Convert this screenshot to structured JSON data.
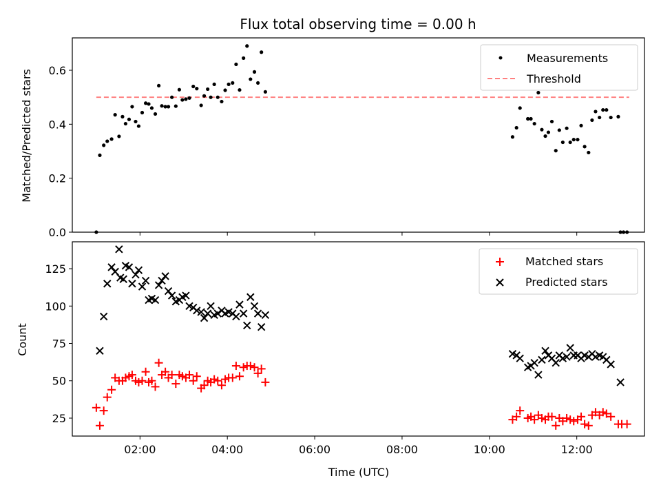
{
  "chart_data": [
    {
      "type": "scatter",
      "title": "Flux total observing time = 0.00 h",
      "xlabel": "",
      "ylabel": "Matched/Predicted stars",
      "xlim": [
        0.45,
        13.55
      ],
      "ylim": [
        0.0,
        0.72
      ],
      "yticks": [
        0.0,
        0.2,
        0.4,
        0.6
      ],
      "ytick_labels": [
        "0.0",
        "0.2",
        "0.4",
        "0.6"
      ],
      "xticks": [
        2,
        4,
        6,
        8,
        10,
        12
      ],
      "legend_position": "top-right",
      "threshold": {
        "name": "Threshold",
        "y": 0.5,
        "x": [
          1.0,
          13.2
        ],
        "color": "#ff8080",
        "style": "dashed"
      },
      "series": [
        {
          "name": "Measurements",
          "marker": "dot",
          "color": "#000000",
          "points": [
            [
              1.0,
              0.0
            ],
            [
              1.08,
              0.285
            ],
            [
              1.17,
              0.322
            ],
            [
              1.25,
              0.337
            ],
            [
              1.35,
              0.345
            ],
            [
              1.43,
              0.435
            ],
            [
              1.52,
              0.355
            ],
            [
              1.6,
              0.428
            ],
            [
              1.67,
              0.402
            ],
            [
              1.75,
              0.418
            ],
            [
              1.82,
              0.465
            ],
            [
              1.9,
              0.41
            ],
            [
              1.97,
              0.393
            ],
            [
              2.05,
              0.443
            ],
            [
              2.13,
              0.478
            ],
            [
              2.2,
              0.475
            ],
            [
              2.27,
              0.46
            ],
            [
              2.35,
              0.438
            ],
            [
              2.43,
              0.543
            ],
            [
              2.5,
              0.468
            ],
            [
              2.58,
              0.465
            ],
            [
              2.65,
              0.465
            ],
            [
              2.73,
              0.5
            ],
            [
              2.82,
              0.467
            ],
            [
              2.9,
              0.528
            ],
            [
              2.97,
              0.49
            ],
            [
              3.05,
              0.493
            ],
            [
              3.13,
              0.497
            ],
            [
              3.22,
              0.54
            ],
            [
              3.3,
              0.532
            ],
            [
              3.4,
              0.47
            ],
            [
              3.47,
              0.505
            ],
            [
              3.55,
              0.53
            ],
            [
              3.62,
              0.5
            ],
            [
              3.7,
              0.548
            ],
            [
              3.78,
              0.5
            ],
            [
              3.87,
              0.484
            ],
            [
              3.95,
              0.526
            ],
            [
              4.03,
              0.548
            ],
            [
              4.12,
              0.553
            ],
            [
              4.2,
              0.622
            ],
            [
              4.28,
              0.527
            ],
            [
              4.37,
              0.645
            ],
            [
              4.45,
              0.69
            ],
            [
              4.53,
              0.567
            ],
            [
              4.62,
              0.594
            ],
            [
              4.7,
              0.553
            ],
            [
              4.78,
              0.667
            ],
            [
              4.87,
              0.52
            ],
            [
              10.53,
              0.353
            ],
            [
              10.62,
              0.387
            ],
            [
              10.7,
              0.46
            ],
            [
              10.88,
              0.42
            ],
            [
              10.95,
              0.42
            ],
            [
              11.03,
              0.402
            ],
            [
              11.12,
              0.517
            ],
            [
              11.2,
              0.38
            ],
            [
              11.28,
              0.356
            ],
            [
              11.35,
              0.37
            ],
            [
              11.43,
              0.41
            ],
            [
              11.52,
              0.302
            ],
            [
              11.6,
              0.378
            ],
            [
              11.68,
              0.333
            ],
            [
              11.77,
              0.385
            ],
            [
              11.85,
              0.333
            ],
            [
              11.93,
              0.343
            ],
            [
              12.02,
              0.343
            ],
            [
              12.1,
              0.395
            ],
            [
              12.18,
              0.317
            ],
            [
              12.27,
              0.295
            ],
            [
              12.35,
              0.415
            ],
            [
              12.43,
              0.447
            ],
            [
              12.52,
              0.425
            ],
            [
              12.6,
              0.453
            ],
            [
              12.68,
              0.453
            ],
            [
              12.78,
              0.425
            ],
            [
              12.95,
              0.428
            ],
            [
              13.0,
              0.0
            ],
            [
              13.07,
              0.0
            ],
            [
              13.15,
              0.0
            ]
          ]
        }
      ]
    },
    {
      "type": "scatter",
      "title": "",
      "xlabel": "Time (UTC)",
      "ylabel": "Count",
      "xlim": [
        0.45,
        13.55
      ],
      "ylim": [
        13,
        143
      ],
      "yticks": [
        25,
        50,
        75,
        100,
        125
      ],
      "ytick_labels": [
        "25",
        "50",
        "75",
        "100",
        "125"
      ],
      "xticks": [
        2,
        4,
        6,
        8,
        10,
        12
      ],
      "xtick_labels": [
        "02:00",
        "04:00",
        "06:00",
        "08:00",
        "10:00",
        "12:00"
      ],
      "legend_position": "top-right",
      "series": [
        {
          "name": "Matched stars",
          "marker": "plus",
          "color": "#ff0000",
          "points": [
            [
              1.0,
              32
            ],
            [
              1.08,
              20
            ],
            [
              1.17,
              30
            ],
            [
              1.25,
              39
            ],
            [
              1.35,
              44
            ],
            [
              1.43,
              52
            ],
            [
              1.52,
              50
            ],
            [
              1.6,
              50
            ],
            [
              1.67,
              52
            ],
            [
              1.75,
              53
            ],
            [
              1.82,
              54
            ],
            [
              1.9,
              50
            ],
            [
              1.97,
              49
            ],
            [
              2.05,
              50
            ],
            [
              2.13,
              56
            ],
            [
              2.2,
              49
            ],
            [
              2.27,
              50
            ],
            [
              2.35,
              46
            ],
            [
              2.43,
              62
            ],
            [
              2.5,
              54
            ],
            [
              2.58,
              56
            ],
            [
              2.65,
              52
            ],
            [
              2.73,
              54
            ],
            [
              2.82,
              48
            ],
            [
              2.9,
              54
            ],
            [
              2.97,
              53
            ],
            [
              3.05,
              52
            ],
            [
              3.13,
              54
            ],
            [
              3.22,
              50
            ],
            [
              3.3,
              53
            ],
            [
              3.4,
              45
            ],
            [
              3.47,
              47
            ],
            [
              3.55,
              50
            ],
            [
              3.62,
              49
            ],
            [
              3.7,
              51
            ],
            [
              3.78,
              50
            ],
            [
              3.87,
              47
            ],
            [
              3.95,
              51
            ],
            [
              4.03,
              52
            ],
            [
              4.12,
              52
            ],
            [
              4.2,
              60
            ],
            [
              4.28,
              53
            ],
            [
              4.37,
              59
            ],
            [
              4.45,
              60
            ],
            [
              4.53,
              60
            ],
            [
              4.62,
              59
            ],
            [
              4.7,
              55
            ],
            [
              4.78,
              58
            ],
            [
              4.87,
              49
            ],
            [
              10.53,
              24
            ],
            [
              10.62,
              26
            ],
            [
              10.7,
              30
            ],
            [
              10.88,
              25
            ],
            [
              10.95,
              26
            ],
            [
              11.03,
              24
            ],
            [
              11.12,
              27
            ],
            [
              11.2,
              25
            ],
            [
              11.28,
              24
            ],
            [
              11.35,
              26
            ],
            [
              11.43,
              26
            ],
            [
              11.52,
              20
            ],
            [
              11.6,
              25
            ],
            [
              11.68,
              23
            ],
            [
              11.77,
              25
            ],
            [
              11.85,
              24
            ],
            [
              11.93,
              23
            ],
            [
              12.02,
              24
            ],
            [
              12.1,
              26
            ],
            [
              12.18,
              21
            ],
            [
              12.27,
              20
            ],
            [
              12.35,
              27
            ],
            [
              12.43,
              29
            ],
            [
              12.52,
              27
            ],
            [
              12.6,
              29
            ],
            [
              12.68,
              28
            ],
            [
              12.78,
              26
            ],
            [
              12.95,
              21
            ],
            [
              13.03,
              21
            ],
            [
              13.15,
              21
            ]
          ]
        },
        {
          "name": "Predicted stars",
          "marker": "x",
          "color": "#000000",
          "points": [
            [
              1.08,
              70
            ],
            [
              1.17,
              93
            ],
            [
              1.25,
              115
            ],
            [
              1.35,
              126
            ],
            [
              1.43,
              123
            ],
            [
              1.52,
              138
            ],
            [
              1.55,
              119
            ],
            [
              1.62,
              118
            ],
            [
              1.67,
              127
            ],
            [
              1.75,
              126
            ],
            [
              1.82,
              115
            ],
            [
              1.9,
              121
            ],
            [
              1.97,
              124
            ],
            [
              2.05,
              113
            ],
            [
              2.13,
              117
            ],
            [
              2.2,
              104
            ],
            [
              2.27,
              105
            ],
            [
              2.35,
              104
            ],
            [
              2.43,
              114
            ],
            [
              2.5,
              117
            ],
            [
              2.58,
              120
            ],
            [
              2.65,
              110
            ],
            [
              2.73,
              107
            ],
            [
              2.82,
              103
            ],
            [
              2.9,
              104
            ],
            [
              2.97,
              106
            ],
            [
              3.05,
              107
            ],
            [
              3.13,
              100
            ],
            [
              3.22,
              99
            ],
            [
              3.3,
              97
            ],
            [
              3.4,
              96
            ],
            [
              3.47,
              92
            ],
            [
              3.55,
              95
            ],
            [
              3.62,
              100
            ],
            [
              3.7,
              94
            ],
            [
              3.78,
              95
            ],
            [
              3.87,
              97
            ],
            [
              3.95,
              95
            ],
            [
              4.03,
              96
            ],
            [
              4.12,
              95
            ],
            [
              4.2,
              93
            ],
            [
              4.28,
              101
            ],
            [
              4.37,
              95
            ],
            [
              4.45,
              87
            ],
            [
              4.53,
              106
            ],
            [
              4.62,
              100
            ],
            [
              4.7,
              95
            ],
            [
              4.78,
              86
            ],
            [
              4.87,
              94
            ],
            [
              10.53,
              68
            ],
            [
              10.62,
              67
            ],
            [
              10.7,
              65
            ],
            [
              10.88,
              59
            ],
            [
              10.95,
              60
            ],
            [
              11.03,
              62
            ],
            [
              11.12,
              54
            ],
            [
              11.2,
              64
            ],
            [
              11.28,
              70
            ],
            [
              11.35,
              67
            ],
            [
              11.43,
              65
            ],
            [
              11.52,
              62
            ],
            [
              11.6,
              67
            ],
            [
              11.68,
              65
            ],
            [
              11.77,
              66
            ],
            [
              11.85,
              72
            ],
            [
              11.93,
              67
            ],
            [
              12.02,
              67
            ],
            [
              12.1,
              65
            ],
            [
              12.18,
              67
            ],
            [
              12.27,
              66
            ],
            [
              12.35,
              68
            ],
            [
              12.43,
              66
            ],
            [
              12.52,
              67
            ],
            [
              12.6,
              66
            ],
            [
              12.68,
              64
            ],
            [
              12.78,
              61
            ],
            [
              13.0,
              49
            ]
          ]
        }
      ]
    }
  ]
}
